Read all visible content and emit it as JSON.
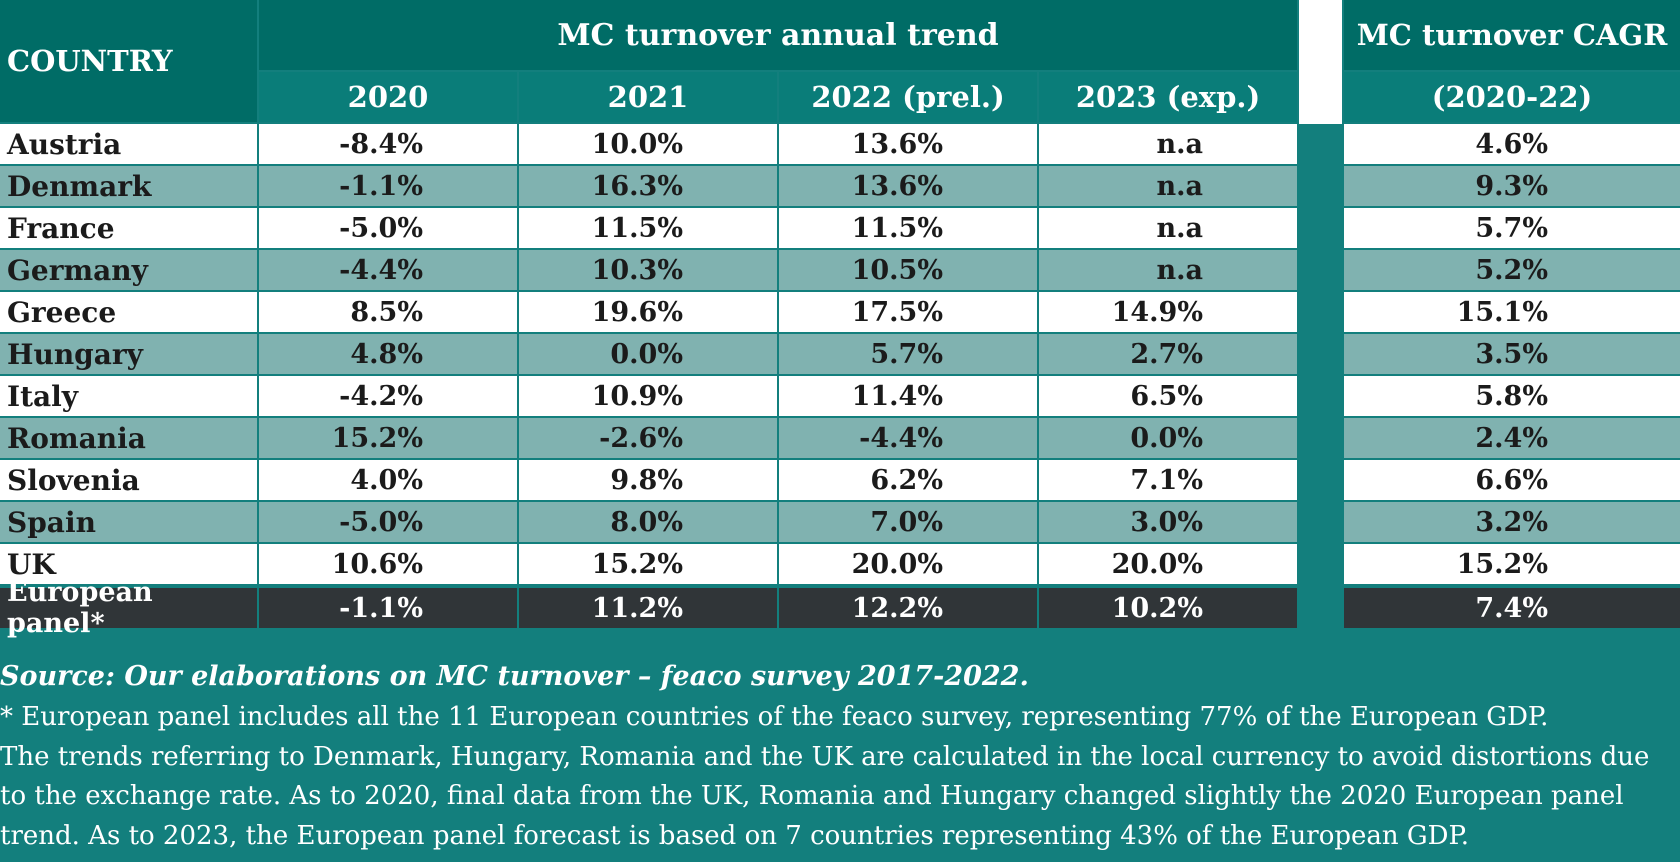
{
  "chart_data": {
    "type": "table",
    "title": "MC turnover annual trend",
    "cagr_title": "MC turnover CAGR",
    "country_header": "COUNTRY",
    "columns": [
      "2020",
      "2021",
      "2022 (prel.)",
      "2023 (exp.)"
    ],
    "cagr_column": "(2020-22)",
    "rows": [
      {
        "country": "Austria",
        "v2020": "-8.4%",
        "v2021": "10.0%",
        "v2022": "13.6%",
        "v2023": "n.a",
        "cagr": "4.6%"
      },
      {
        "country": "Denmark",
        "v2020": "-1.1%",
        "v2021": "16.3%",
        "v2022": "13.6%",
        "v2023": "n.a",
        "cagr": "9.3%"
      },
      {
        "country": "France",
        "v2020": "-5.0%",
        "v2021": "11.5%",
        "v2022": "11.5%",
        "v2023": "n.a",
        "cagr": "5.7%"
      },
      {
        "country": "Germany",
        "v2020": "-4.4%",
        "v2021": "10.3%",
        "v2022": "10.5%",
        "v2023": "n.a",
        "cagr": "5.2%"
      },
      {
        "country": "Greece",
        "v2020": "8.5%",
        "v2021": "19.6%",
        "v2022": "17.5%",
        "v2023": "14.9%",
        "cagr": "15.1%"
      },
      {
        "country": "Hungary",
        "v2020": "4.8%",
        "v2021": "0.0%",
        "v2022": "5.7%",
        "v2023": "2.7%",
        "cagr": "3.5%"
      },
      {
        "country": "Italy",
        "v2020": "-4.2%",
        "v2021": "10.9%",
        "v2022": "11.4%",
        "v2023": "6.5%",
        "cagr": "5.8%"
      },
      {
        "country": "Romania",
        "v2020": "15.2%",
        "v2021": "-2.6%",
        "v2022": "-4.4%",
        "v2023": "0.0%",
        "cagr": "2.4%"
      },
      {
        "country": "Slovenia",
        "v2020": "4.0%",
        "v2021": "9.8%",
        "v2022": "6.2%",
        "v2023": "7.1%",
        "cagr": "6.6%"
      },
      {
        "country": "Spain",
        "v2020": "-5.0%",
        "v2021": "8.0%",
        "v2022": "7.0%",
        "v2023": "3.0%",
        "cagr": "3.2%"
      },
      {
        "country": "UK",
        "v2020": "10.6%",
        "v2021": "15.2%",
        "v2022": "20.0%",
        "v2023": "20.0%",
        "cagr": "15.2%"
      }
    ],
    "total": {
      "country": "European panel*",
      "v2020": "-1.1%",
      "v2021": "11.2%",
      "v2022": "12.2%",
      "v2023": "10.2%",
      "cagr": "7.4%"
    }
  },
  "footer": {
    "source": "Source: Our elaborations on MC turnover – feaco survey 2017-2022.",
    "note_lines": [
      "* European panel includes all the 11 European countries of the feaco survey, representing 77% of the European GDP.",
      "The trends referring to Denmark, Hungary, Romania and the UK are calculated in the local currency to avoid distortions due",
      "to the exchange rate. As to 2020, final data from the UK, Romania and Hungary changed slightly the 2020 European panel",
      "trend. As to 2023, the European panel forecast is based on 7 countries representing 43% of the European GDP."
    ]
  },
  "colors": {
    "header": "#006c66",
    "subheader": "#0a7d79",
    "band": "#80b2b0",
    "total": "#303538",
    "background": "#137f7d"
  }
}
